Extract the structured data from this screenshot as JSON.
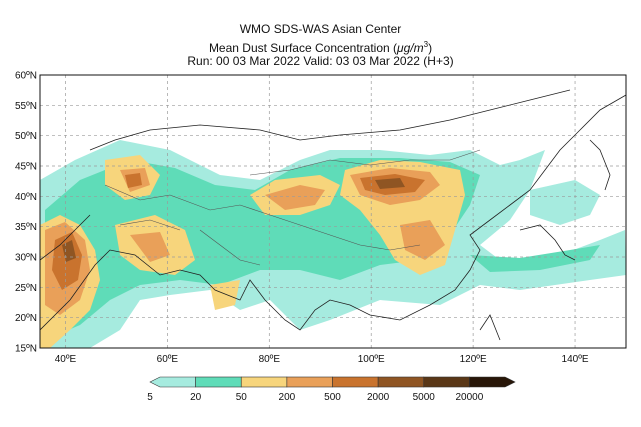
{
  "title": {
    "line1": "WMO SDS-WAS Asian Center",
    "line2_main": "Mean Dust Surface Concentration (",
    "line2_unit": "μg/m",
    "line2_sup": "3",
    "line2_end": ")",
    "line3": "Run: 00 03 Mar 2022     Valid: 03 03 Mar 2022 (H+3)"
  },
  "map": {
    "lon_range": [
      35,
      150
    ],
    "lat_range": [
      15,
      60
    ],
    "lon_ticks": [
      {
        "value": 40,
        "label": "40ºE"
      },
      {
        "value": 60,
        "label": "60ºE"
      },
      {
        "value": 80,
        "label": "80ºE"
      },
      {
        "value": 100,
        "label": "100ºE"
      },
      {
        "value": 120,
        "label": "120ºE"
      },
      {
        "value": 140,
        "label": "140ºE"
      }
    ],
    "lat_ticks": [
      {
        "value": 60,
        "label": "60ºN"
      },
      {
        "value": 55,
        "label": "55ºN"
      },
      {
        "value": 50,
        "label": "50ºN"
      },
      {
        "value": 45,
        "label": "45ºN"
      },
      {
        "value": 40,
        "label": "40ºN"
      },
      {
        "value": 35,
        "label": "35ºN"
      },
      {
        "value": 30,
        "label": "30ºN"
      },
      {
        "value": 25,
        "label": "25ºN"
      },
      {
        "value": 20,
        "label": "20ºN"
      },
      {
        "value": 15,
        "label": "15ºN"
      }
    ]
  },
  "colorbar": {
    "labels": [
      "5",
      "20",
      "50",
      "200",
      "500",
      "2000",
      "5000",
      "20000"
    ],
    "colors": [
      "#a6ebdf",
      "#5fdcb8",
      "#f7d57c",
      "#e9a059",
      "#c9732e",
      "#8f5523",
      "#5a3717",
      "#281608"
    ]
  }
}
